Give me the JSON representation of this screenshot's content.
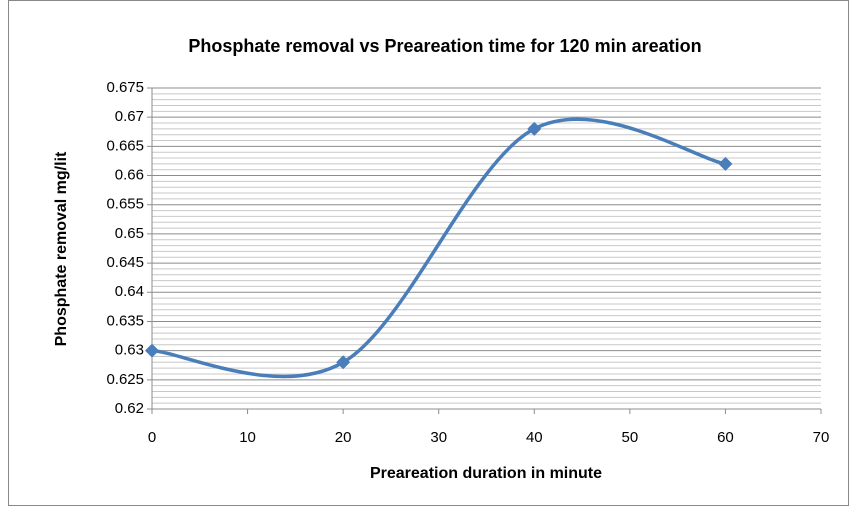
{
  "chart_data": {
    "type": "line",
    "title": "Phosphate removal  vs Preareation time for 120 min areation",
    "x_label": "Preareation duration in minute",
    "y_label": "Phosphate removal  mg/lit",
    "x": [
      0,
      20,
      40,
      60
    ],
    "series": [
      {
        "name": null,
        "color": "#4a7ebb",
        "values": [
          0.63,
          0.628,
          0.668,
          0.662
        ]
      }
    ],
    "xlim": [
      0,
      70
    ],
    "xticks": [
      0,
      10,
      20,
      30,
      40,
      50,
      60,
      70
    ],
    "ylim": [
      0.62,
      0.675
    ],
    "yticks": [
      0.62,
      0.625,
      0.63,
      0.635,
      0.64,
      0.645,
      0.65,
      0.655,
      0.66,
      0.665,
      0.67,
      0.675
    ],
    "grid": true,
    "minor_grid": true,
    "smooth": true,
    "marker": "diamond"
  }
}
